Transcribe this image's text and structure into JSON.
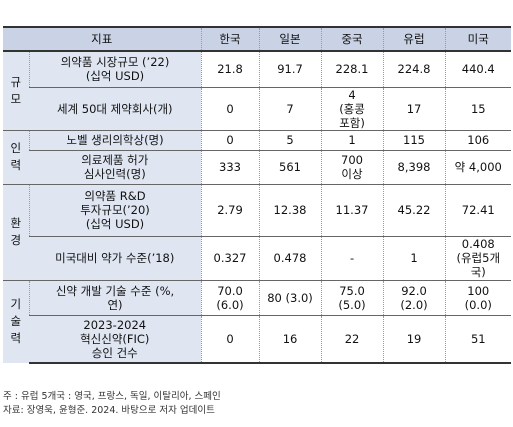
{
  "header": {
    "indicator": "지표",
    "countries": [
      "한국",
      "일본",
      "중국",
      "유럽",
      "미국"
    ]
  },
  "categories": {
    "scale": "규\n모",
    "manpower": "인\n력",
    "environment": "환\n경",
    "technology": "기\n술\n력"
  },
  "rows": [
    {
      "label": "의약품 시장규모 (’22)\n(십억 USD)",
      "values": [
        "21.8",
        "91.7",
        "228.1",
        "224.8",
        "440.4"
      ]
    },
    {
      "label": "세계 50대 제약회사(개)",
      "values": [
        "0",
        "7",
        "4\n(홍콩\n포함)",
        "17",
        "15"
      ]
    },
    {
      "label": "노벨 생리의학상(명)",
      "values": [
        "0",
        "5",
        "1",
        "115",
        "106"
      ]
    },
    {
      "label": "의료제품 허가\n심사인력(명)",
      "values": [
        "333",
        "561",
        "700\n이상",
        "8,398",
        "약 4,000"
      ]
    },
    {
      "label": "의약품 R&D\n투자규모(’20)\n(십억 USD)",
      "values": [
        "2.79",
        "12.38",
        "11.37",
        "45.22",
        "72.41"
      ]
    },
    {
      "label": "미국대비 약가 수준(’18)",
      "values": [
        "0.327",
        "0.478",
        "-",
        "1",
        "0.408\n(유럽5개\n국)"
      ]
    },
    {
      "label": "신약 개발 기술 수준 (%,\n연)",
      "values": [
        "70.0\n(6.0)",
        "80 (3.0)",
        "75.0\n(5.0)",
        "92.0\n(2.0)",
        "100\n(0.0)"
      ]
    },
    {
      "label": "2023-2024\n혁신신약(FIC)\n승인 건수",
      "values": [
        "0",
        "16",
        "22",
        "19",
        "51"
      ]
    }
  ],
  "notes": [
    "주 : 유럽 5개국 : 영국, 프랑스, 독일, 이탈리아, 스페인",
    "자료: 장영욱, 윤형준. 2024. 바탕으로 저자 업데이트"
  ]
}
